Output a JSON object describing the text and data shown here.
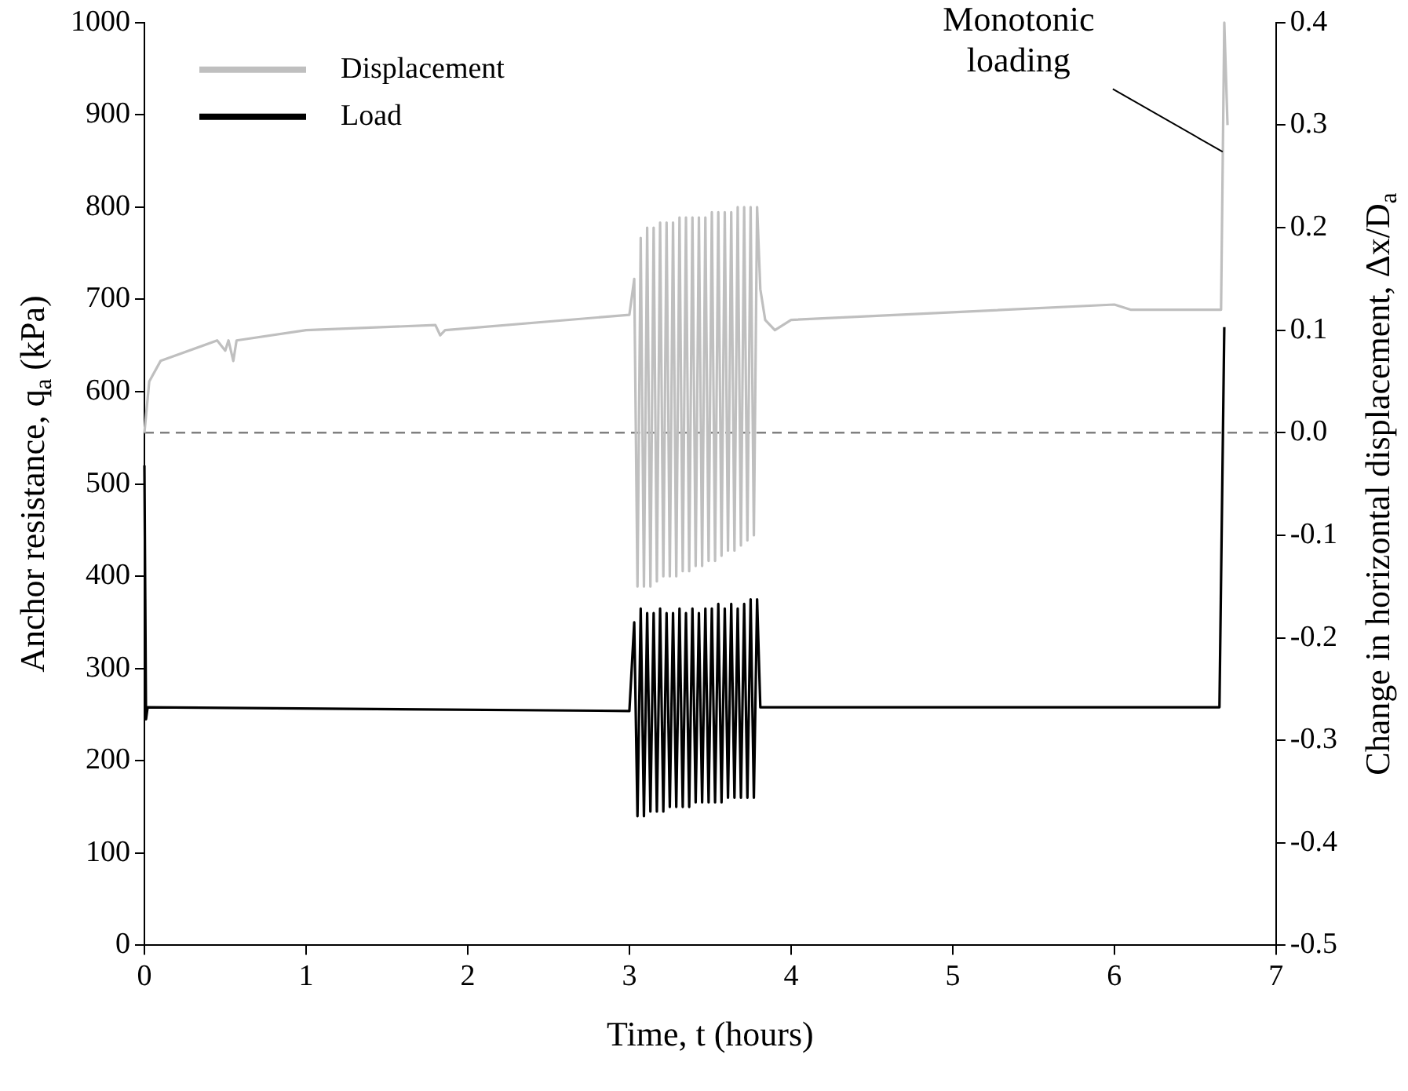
{
  "chart_data": {
    "type": "line",
    "xlabel": "Time, t (hours)",
    "ylabel": "Anchor resistance, q$_{a}$ (kPa)",
    "y2label": "Change in horizontal displacement, Δx/D$_{a}$",
    "xlim": [
      0,
      7
    ],
    "xticks": [
      0,
      1,
      2,
      3,
      4,
      5,
      6,
      7
    ],
    "ylim": [
      0,
      1000
    ],
    "yticks": [
      0,
      100,
      200,
      300,
      400,
      500,
      600,
      700,
      800,
      900,
      1000
    ],
    "y2lim": [
      -0.5,
      0.4
    ],
    "y2ticks": [
      -0.5,
      -0.4,
      -0.3,
      -0.2,
      -0.1,
      {
        "value": 0,
        "label": "0.0"
      },
      0.1,
      0.2,
      0.3,
      0.4
    ],
    "grid": false,
    "legend": "top left",
    "marker": "none",
    "line_style": "solid",
    "ref_lines": [
      {
        "axis": "y2",
        "value": 0,
        "color": "#808080",
        "line_style": "dashed"
      }
    ],
    "annotations": [
      {
        "text": "Monotonic loading",
        "x": 6.67,
        "y": 860
      }
    ],
    "series": [
      {
        "name": "Displacement",
        "color": "#bfbfbf",
        "axis": "y2",
        "x": [
          0,
          0.03,
          0.1,
          0.45,
          0.5,
          0.52,
          0.55,
          0.57,
          1.0,
          1.8,
          1.83,
          1.86,
          3.0,
          3.03,
          3.05,
          3.07,
          3.09,
          3.11,
          3.13,
          3.15,
          3.17,
          3.19,
          3.21,
          3.23,
          3.25,
          3.27,
          3.29,
          3.31,
          3.33,
          3.35,
          3.37,
          3.39,
          3.41,
          3.43,
          3.45,
          3.47,
          3.49,
          3.51,
          3.53,
          3.55,
          3.57,
          3.59,
          3.61,
          3.63,
          3.65,
          3.67,
          3.69,
          3.71,
          3.73,
          3.75,
          3.77,
          3.79,
          3.81,
          3.84,
          3.9,
          4.0,
          6.0,
          6.1,
          6.66,
          6.68,
          6.7
        ],
        "values": [
          0,
          0.05,
          0.07,
          0.09,
          0.08,
          0.09,
          0.07,
          0.09,
          0.1,
          0.105,
          0.095,
          0.1,
          0.115,
          0.15,
          -0.15,
          0.19,
          -0.15,
          0.2,
          -0.15,
          0.2,
          -0.145,
          0.205,
          -0.14,
          0.205,
          -0.14,
          0.205,
          -0.14,
          0.21,
          -0.135,
          0.21,
          -0.135,
          0.21,
          -0.13,
          0.21,
          -0.13,
          0.21,
          -0.125,
          0.215,
          -0.125,
          0.215,
          -0.12,
          0.215,
          -0.115,
          0.215,
          -0.115,
          0.22,
          -0.11,
          0.22,
          -0.105,
          0.22,
          -0.1,
          0.22,
          0.14,
          0.11,
          0.1,
          0.11,
          0.125,
          0.12,
          0.12,
          0.4,
          0.3
        ]
      },
      {
        "name": "Load",
        "color": "#000000",
        "x": [
          0,
          0.01,
          0.02,
          3.0,
          3.03,
          3.05,
          3.07,
          3.09,
          3.11,
          3.13,
          3.15,
          3.17,
          3.19,
          3.21,
          3.23,
          3.25,
          3.27,
          3.29,
          3.31,
          3.33,
          3.35,
          3.37,
          3.39,
          3.41,
          3.43,
          3.45,
          3.47,
          3.49,
          3.51,
          3.53,
          3.55,
          3.57,
          3.59,
          3.61,
          3.63,
          3.65,
          3.67,
          3.69,
          3.71,
          3.73,
          3.75,
          3.77,
          3.79,
          3.81,
          6.65,
          6.68
        ],
        "values": [
          520,
          245,
          258,
          254,
          350,
          140,
          365,
          140,
          360,
          145,
          360,
          145,
          365,
          145,
          360,
          150,
          360,
          150,
          365,
          150,
          360,
          150,
          365,
          155,
          360,
          155,
          365,
          155,
          365,
          155,
          370,
          155,
          365,
          160,
          370,
          160,
          365,
          160,
          370,
          160,
          375,
          160,
          375,
          258,
          258,
          670
        ]
      }
    ]
  }
}
